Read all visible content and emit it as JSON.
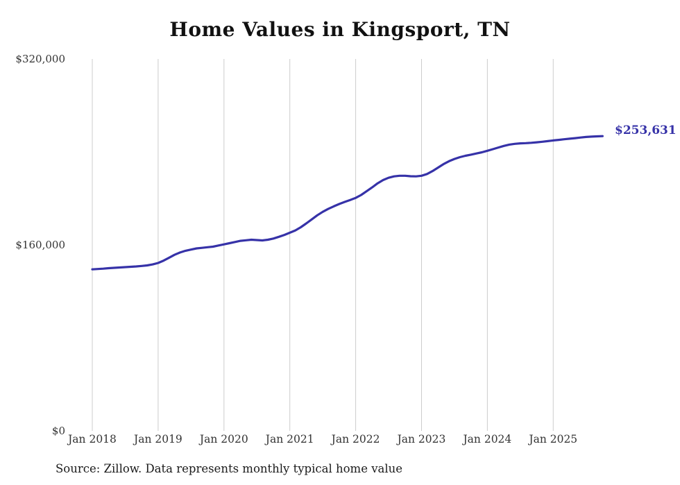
{
  "chart_data": {
    "type": "line",
    "title": "Home Values in Kingsport, TN",
    "source_note": "Source: Zillow. Data represents monthly typical home value",
    "end_label": "$253,631",
    "line_color": "#3632a8",
    "grid_color": "#cccccc",
    "ylim": [
      0,
      320000
    ],
    "grid": "vertical-only",
    "legend_position": "none",
    "x_start": "Jan 2018",
    "x_end": "Oct 2025",
    "x_frequency": "monthly",
    "y_ticks": [
      {
        "value": 320000,
        "label": "$320,000"
      },
      {
        "value": 160000,
        "label": "$160,000"
      },
      {
        "value": 0,
        "label": "$0"
      }
    ],
    "x_ticks": [
      {
        "month_index": 0,
        "label": "Jan 2018"
      },
      {
        "month_index": 12,
        "label": "Jan 2019"
      },
      {
        "month_index": 24,
        "label": "Jan 2020"
      },
      {
        "month_index": 36,
        "label": "Jan 2021"
      },
      {
        "month_index": 48,
        "label": "Jan 2022"
      },
      {
        "month_index": 60,
        "label": "Jan 2023"
      },
      {
        "month_index": 72,
        "label": "Jan 2024"
      },
      {
        "month_index": 84,
        "label": "Jan 2025"
      }
    ],
    "series": [
      {
        "name": "Typical home value",
        "final_value": 253631,
        "values": [
          139000,
          139300,
          139600,
          140000,
          140300,
          140600,
          140900,
          141200,
          141500,
          141900,
          142400,
          143200,
          144500,
          146500,
          149000,
          151500,
          153500,
          155000,
          156000,
          157000,
          157500,
          158000,
          158500,
          159500,
          160500,
          161500,
          162500,
          163500,
          164000,
          164500,
          164200,
          163900,
          164500,
          165500,
          167000,
          168600,
          170500,
          172500,
          175200,
          178500,
          182000,
          185500,
          188500,
          191000,
          193200,
          195200,
          197000,
          198700,
          200500,
          203000,
          206200,
          209500,
          213000,
          215800,
          217800,
          219000,
          219500,
          219500,
          219100,
          219000,
          219500,
          221000,
          223500,
          226500,
          229500,
          232000,
          234000,
          235500,
          236700,
          237700,
          238700,
          239700,
          241000,
          242400,
          243800,
          245200,
          246300,
          247000,
          247400,
          247600,
          247900,
          248300,
          248800,
          249300,
          249900,
          250400,
          250900,
          251400,
          251900,
          252400,
          252900,
          253200,
          253450,
          253631
        ]
      }
    ]
  }
}
